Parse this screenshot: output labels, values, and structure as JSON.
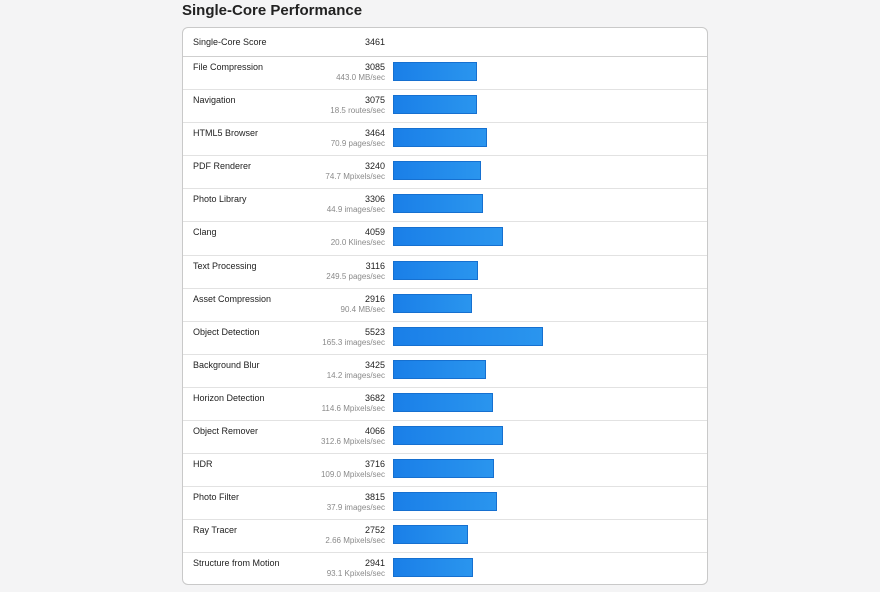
{
  "section": {
    "title": "Single-Core Performance"
  },
  "summary": {
    "label": "Single-Core Score",
    "score": "3461"
  },
  "accent_color": "#1a7fe8",
  "bar_scale_max": 5523,
  "benchmarks": [
    {
      "name": "File Compression",
      "score": 3085,
      "rate": "443.0 MB/sec"
    },
    {
      "name": "Navigation",
      "score": 3075,
      "rate": "18.5 routes/sec"
    },
    {
      "name": "HTML5 Browser",
      "score": 3464,
      "rate": "70.9 pages/sec"
    },
    {
      "name": "PDF Renderer",
      "score": 3240,
      "rate": "74.7 Mpixels/sec"
    },
    {
      "name": "Photo Library",
      "score": 3306,
      "rate": "44.9 images/sec"
    },
    {
      "name": "Clang",
      "score": 4059,
      "rate": "20.0 Klines/sec"
    },
    {
      "name": "Text Processing",
      "score": 3116,
      "rate": "249.5 pages/sec"
    },
    {
      "name": "Asset Compression",
      "score": 2916,
      "rate": "90.4 MB/sec"
    },
    {
      "name": "Object Detection",
      "score": 5523,
      "rate": "165.3 images/sec"
    },
    {
      "name": "Background Blur",
      "score": 3425,
      "rate": "14.2 images/sec"
    },
    {
      "name": "Horizon Detection",
      "score": 3682,
      "rate": "114.6 Mpixels/sec"
    },
    {
      "name": "Object Remover",
      "score": 4066,
      "rate": "312.6 Mpixels/sec"
    },
    {
      "name": "HDR",
      "score": 3716,
      "rate": "109.0 Mpixels/sec"
    },
    {
      "name": "Photo Filter",
      "score": 3815,
      "rate": "37.9 images/sec"
    },
    {
      "name": "Ray Tracer",
      "score": 2752,
      "rate": "2.66 Mpixels/sec"
    },
    {
      "name": "Structure from Motion",
      "score": 2941,
      "rate": "93.1 Kpixels/sec"
    }
  ]
}
